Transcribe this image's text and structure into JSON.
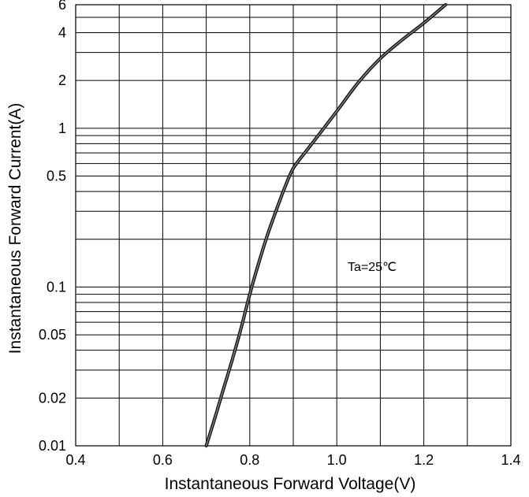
{
  "chart_data": {
    "type": "line",
    "title": "",
    "xlabel": "Instantaneous Forward Voltage(V)",
    "ylabel": "Instantaneous Forward Current(A)",
    "xlim": [
      0.4,
      1.4
    ],
    "ylim": [
      0.01,
      6
    ],
    "y_scale": "log",
    "grid": true,
    "x_ticks": [
      {
        "value": 0.4,
        "label": "0.4"
      },
      {
        "value": 0.6,
        "label": "0.6"
      },
      {
        "value": 0.8,
        "label": "0.8"
      },
      {
        "value": 1.0,
        "label": "1.0"
      },
      {
        "value": 1.2,
        "label": "1.2"
      },
      {
        "value": 1.4,
        "label": "1.4"
      }
    ],
    "y_ticks": [
      {
        "value": 0.01,
        "label": "0.01"
      },
      {
        "value": 0.02,
        "label": "0.02"
      },
      {
        "value": 0.05,
        "label": "0.05"
      },
      {
        "value": 0.1,
        "label": "0.1"
      },
      {
        "value": 0.5,
        "label": "0.5"
      },
      {
        "value": 1,
        "label": "1"
      },
      {
        "value": 2,
        "label": "2"
      },
      {
        "value": 4,
        "label": "4"
      },
      {
        "value": 6,
        "label": "6"
      }
    ],
    "x_gridlines": [
      0.4,
      0.5,
      0.6,
      0.7,
      0.8,
      0.9,
      1.0,
      1.1,
      1.2,
      1.3,
      1.4
    ],
    "y_gridlines": [
      0.01,
      0.02,
      0.03,
      0.04,
      0.05,
      0.06,
      0.07,
      0.08,
      0.09,
      0.1,
      0.2,
      0.3,
      0.4,
      0.5,
      0.6,
      0.7,
      0.8,
      0.9,
      1,
      2,
      3,
      4,
      5,
      6
    ],
    "annotation": "Ta=25℃",
    "series": [
      {
        "x": [
          0.7,
          0.72,
          0.74,
          0.76,
          0.78,
          0.8,
          0.82,
          0.84,
          0.86,
          0.88,
          0.9,
          0.93,
          0.96,
          1.0,
          1.05,
          1.1,
          1.15,
          1.2,
          1.25
        ],
        "y": [
          0.01,
          0.015,
          0.023,
          0.035,
          0.055,
          0.09,
          0.14,
          0.21,
          0.3,
          0.42,
          0.56,
          0.72,
          0.92,
          1.28,
          1.95,
          2.75,
          3.6,
          4.6,
          6.0
        ],
        "color": "#1a1a1a"
      }
    ]
  }
}
